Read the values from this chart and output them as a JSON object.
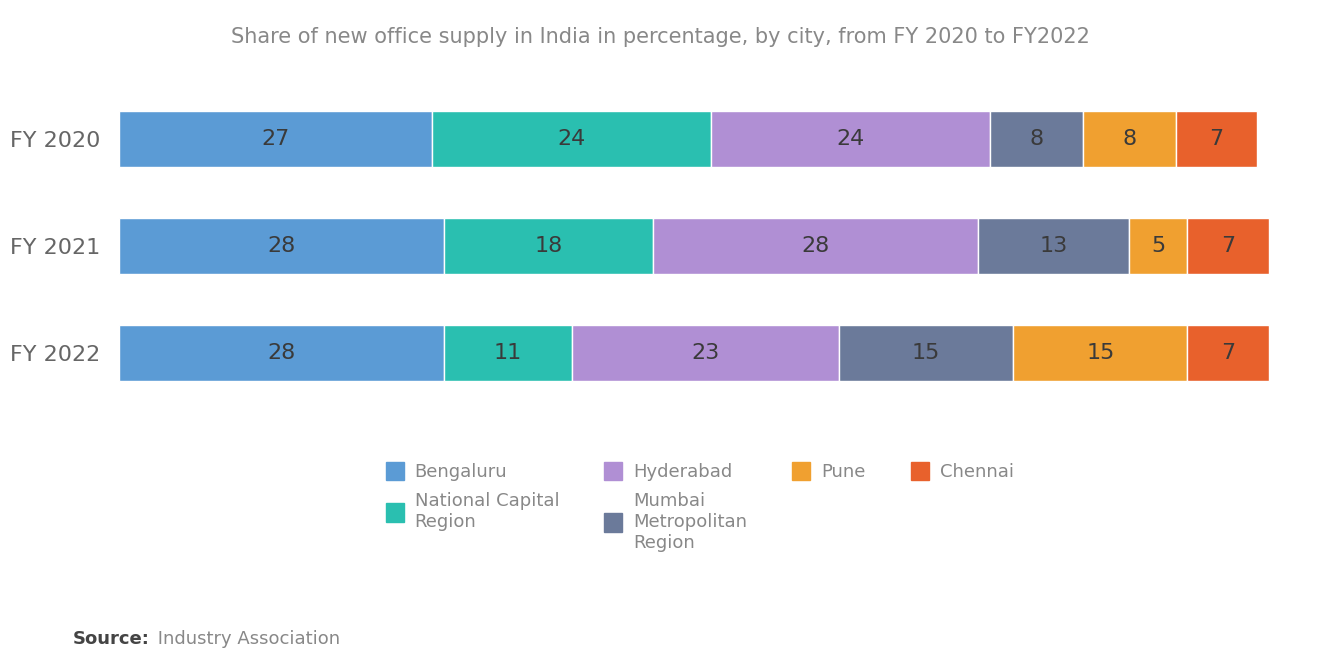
{
  "title": "Share of new office supply in India in percentage, by city, from FY 2020 to FY2022",
  "years": [
    "FY 2020",
    "FY 2021",
    "FY 2022"
  ],
  "categories": [
    "Bengaluru",
    "National Capital\nRegion",
    "Hyderabad",
    "Mumbai\nMetropolitan\nRegion",
    "Pune",
    "Chennai"
  ],
  "legend_order": [
    0,
    1,
    2,
    3,
    4,
    5
  ],
  "colors": [
    "#5b9bd5",
    "#2abfb0",
    "#b08fd4",
    "#6b7a9a",
    "#f0a030",
    "#e8612c"
  ],
  "data": {
    "FY 2020": [
      27,
      24,
      24,
      8,
      8,
      7
    ],
    "FY 2021": [
      28,
      18,
      28,
      13,
      5,
      7
    ],
    "FY 2022": [
      28,
      11,
      23,
      15,
      15,
      7
    ]
  },
  "background_color": "#ffffff",
  "bar_height": 0.52,
  "title_fontsize": 15,
  "label_fontsize": 16,
  "legend_fontsize": 13,
  "source_fontsize": 13,
  "bar_text_color": "#3a3a3a",
  "text_color": "#888888",
  "ylabel_color": "#666666"
}
